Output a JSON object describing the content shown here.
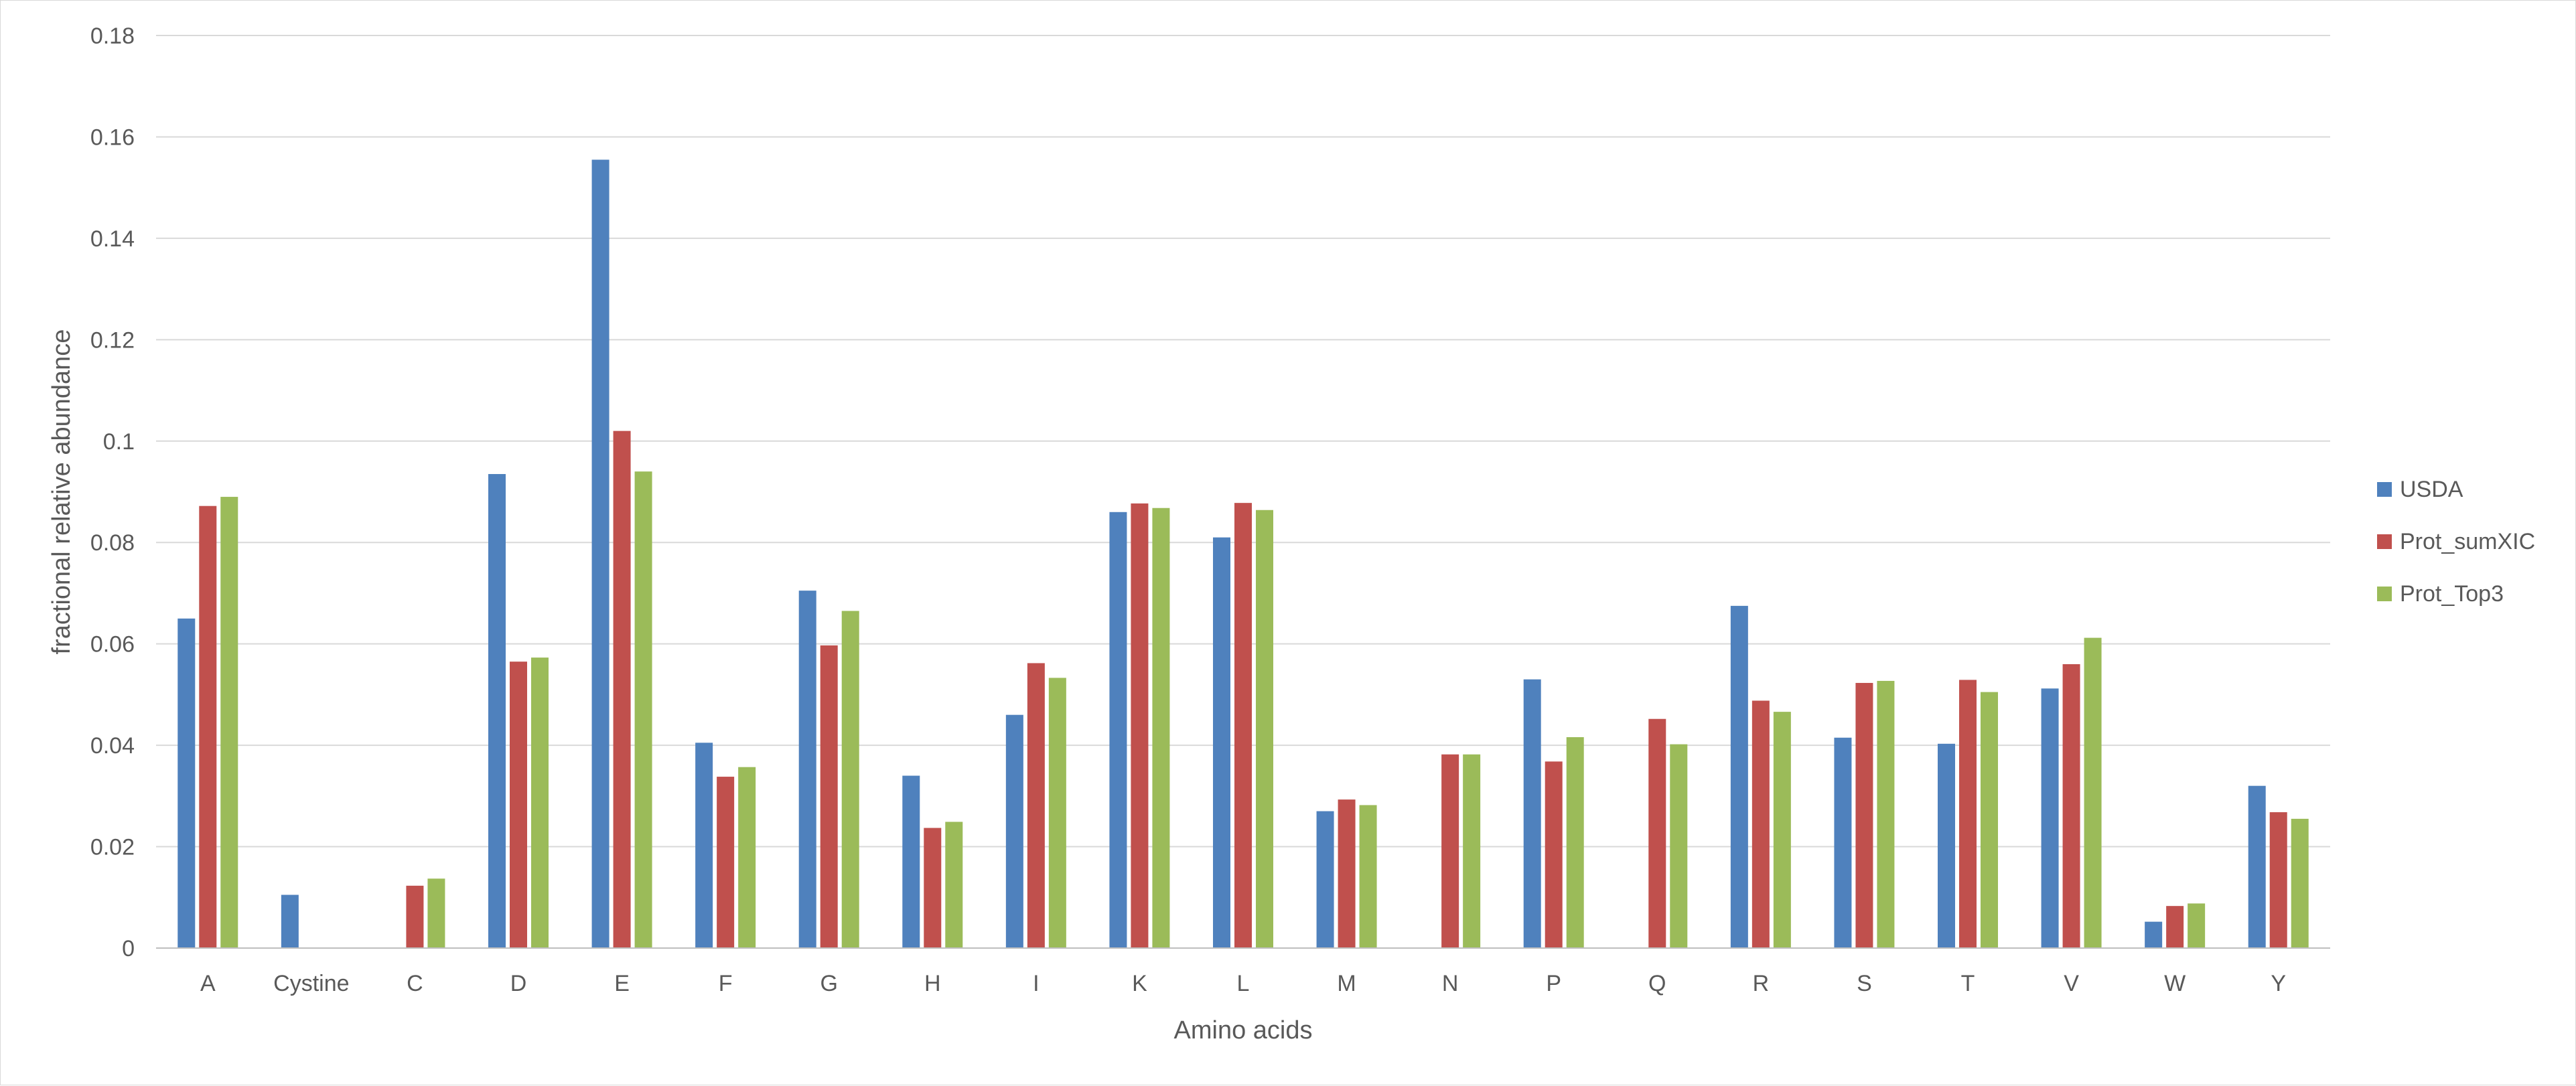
{
  "chart_data": {
    "type": "bar",
    "title": "",
    "xlabel": "Amino acids",
    "ylabel": "fractional relative abundance",
    "ylim": [
      0,
      0.18
    ],
    "yticks": [
      "0",
      "0.02",
      "0.04",
      "0.06",
      "0.08",
      "0.1",
      "0.12",
      "0.14",
      "0.16",
      "0.18"
    ],
    "grid": true,
    "legend_position": "right",
    "categories": [
      "A",
      "Cystine",
      "C",
      "D",
      "E",
      "F",
      "G",
      "H",
      "I",
      "K",
      "L",
      "M",
      "N",
      "P",
      "Q",
      "R",
      "S",
      "T",
      "V",
      "W",
      "Y"
    ],
    "series": [
      {
        "name": "USDA",
        "color": "#4f81bd",
        "values": [
          0.065,
          0.0105,
          null,
          0.0935,
          0.1555,
          0.0405,
          0.0705,
          0.034,
          0.046,
          0.086,
          0.081,
          0.027,
          null,
          0.053,
          null,
          0.0675,
          0.0415,
          0.0403,
          0.0512,
          0.0052,
          0.032
        ]
      },
      {
        "name": "Prot_sumXIC",
        "color": "#c0504d",
        "values": [
          0.0872,
          null,
          0.0123,
          0.0565,
          0.102,
          0.0338,
          0.0597,
          0.0237,
          0.0562,
          0.0877,
          0.0878,
          0.0293,
          0.0382,
          0.0368,
          0.0452,
          0.0488,
          0.0523,
          0.0529,
          0.056,
          0.0083,
          0.0268
        ]
      },
      {
        "name": "Prot_Top3",
        "color": "#9bbb59",
        "values": [
          0.089,
          null,
          0.0137,
          0.0573,
          0.094,
          0.0357,
          0.0665,
          0.0249,
          0.0533,
          0.0868,
          0.0864,
          0.0282,
          0.0382,
          0.0416,
          0.0402,
          0.0466,
          0.0527,
          0.0505,
          0.0612,
          0.0088,
          0.0255
        ]
      }
    ]
  }
}
